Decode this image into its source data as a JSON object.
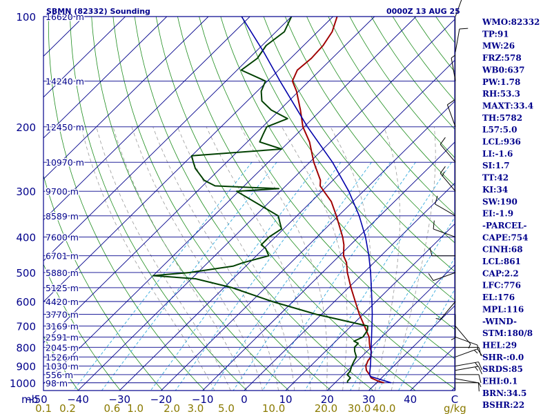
{
  "chart_data": {
    "type": "line",
    "chart_kind": "skew-t log-p sounding",
    "title": "SBMN (82332) Sounding",
    "datetime": "0000Z 13 AUG 25",
    "pressure_unit": "mb",
    "mixing_ratio_unit": "g/kg",
    "pressure_levels": [
      100,
      200,
      300,
      400,
      500,
      600,
      700,
      800,
      900,
      1000
    ],
    "pressure_range": [
      100,
      1050
    ],
    "isobar_labels": [
      "100",
      "200",
      "300",
      "400",
      "500",
      "600",
      "700",
      "800",
      "900",
      "1000"
    ],
    "height_labels": [
      {
        "p": 100,
        "text": "16620 m"
      },
      {
        "p": 150,
        "text": "14240 m"
      },
      {
        "p": 200,
        "text": "12450 m"
      },
      {
        "p": 250,
        "text": "10970 m"
      },
      {
        "p": 300,
        "text": "9700 m"
      },
      {
        "p": 350,
        "text": "8589 m"
      },
      {
        "p": 400,
        "text": "7600 m"
      },
      {
        "p": 450,
        "text": "6701 m"
      },
      {
        "p": 500,
        "text": "5880 m"
      },
      {
        "p": 550,
        "text": "5125 m"
      },
      {
        "p": 600,
        "text": "4420 m"
      },
      {
        "p": 650,
        "text": "3770 m"
      },
      {
        "p": 700,
        "text": "3169 m"
      },
      {
        "p": 750,
        "text": "2591 m"
      },
      {
        "p": 800,
        "text": "2045 m"
      },
      {
        "p": 850,
        "text": "1526 m"
      },
      {
        "p": 900,
        "text": "1030 m"
      },
      {
        "p": 950,
        "text": "556 m"
      },
      {
        "p": 1000,
        "text": "98 m"
      }
    ],
    "temperature_ticks": [
      -50,
      -40,
      -30,
      -20,
      -10,
      0,
      10,
      20,
      30,
      40
    ],
    "temperature_tick_labels": [
      "−50",
      "−40",
      "−30",
      "−20",
      "−10",
      "0",
      "10",
      "20",
      "30",
      "40"
    ],
    "temperature_unit_label": "C",
    "mixing_ratio_labels": [
      {
        "text": "0.1",
        "t": -48.3
      },
      {
        "text": "0.2",
        "t": -42.5
      },
      {
        "text": "0.6",
        "t": -31.8
      },
      {
        "text": "1.0",
        "t": -26.2
      },
      {
        "text": "2.0",
        "t": -17.4
      },
      {
        "text": "3.0",
        "t": -11.7
      },
      {
        "text": "5.0",
        "t": -4.3
      },
      {
        "text": "10.0",
        "t": 7.1
      },
      {
        "text": "20.0",
        "t": 19.7
      },
      {
        "text": "30.0",
        "t": 27.7
      },
      {
        "text": "40.0",
        "t": 33.7
      }
    ],
    "series": [
      {
        "role": "temperature",
        "color": "#a00000",
        "points": [
          [
            1000,
            31.8
          ],
          [
            990,
            30.0
          ],
          [
            970,
            27.5
          ],
          [
            950,
            26.3
          ],
          [
            925,
            24.5
          ],
          [
            900,
            23.3
          ],
          [
            870,
            22.5
          ],
          [
            850,
            22.3
          ],
          [
            820,
            21.0
          ],
          [
            800,
            19.7
          ],
          [
            780,
            18.6
          ],
          [
            750,
            17.0
          ],
          [
            700,
            13.2
          ],
          [
            650,
            9.1
          ],
          [
            600,
            5.0
          ],
          [
            550,
            0.6
          ],
          [
            500,
            -4.0
          ],
          [
            470,
            -6.6
          ],
          [
            450,
            -9.0
          ],
          [
            420,
            -11.6
          ],
          [
            400,
            -13.8
          ],
          [
            350,
            -20.5
          ],
          [
            320,
            -25.2
          ],
          [
            300,
            -29.5
          ],
          [
            290,
            -31.7
          ],
          [
            280,
            -33.0
          ],
          [
            250,
            -39.0
          ],
          [
            220,
            -45.0
          ],
          [
            200,
            -50.3
          ],
          [
            180,
            -55.0
          ],
          [
            160,
            -60.5
          ],
          [
            150,
            -64.0
          ],
          [
            140,
            -65.5
          ],
          [
            130,
            -65.0
          ],
          [
            120,
            -65.3
          ],
          [
            110,
            -66.5
          ],
          [
            100,
            -69.0
          ]
        ]
      },
      {
        "role": "dewpoint",
        "color": "#004000",
        "points": [
          [
            1000,
            23.0
          ],
          [
            990,
            22.6
          ],
          [
            970,
            22.5
          ],
          [
            950,
            20.9
          ],
          [
            930,
            20.8
          ],
          [
            900,
            19.9
          ],
          [
            870,
            19.2
          ],
          [
            850,
            18.8
          ],
          [
            820,
            17.0
          ],
          [
            800,
            16.0
          ],
          [
            780,
            15.9
          ],
          [
            770,
            14.4
          ],
          [
            750,
            15.5
          ],
          [
            720,
            15.0
          ],
          [
            700,
            14.0
          ],
          [
            650,
            -1.3
          ],
          [
            600,
            -15.0
          ],
          [
            550,
            -28.0
          ],
          [
            520,
            -39.0
          ],
          [
            510,
            -50.0
          ],
          [
            500,
            -42.0
          ],
          [
            480,
            -33.0
          ],
          [
            470,
            -31.5
          ],
          [
            450,
            -27.0
          ],
          [
            430,
            -29.5
          ],
          [
            420,
            -31.5
          ],
          [
            400,
            -31.5
          ],
          [
            380,
            -30.5
          ],
          [
            350,
            -34.5
          ],
          [
            300,
            -50.5
          ],
          [
            295,
            -41.0
          ],
          [
            290,
            -57.0
          ],
          [
            280,
            -61.0
          ],
          [
            260,
            -66.0
          ],
          [
            250,
            -68.0
          ],
          [
            240,
            -70.0
          ],
          [
            230,
            -50.0
          ],
          [
            220,
            -57.0
          ],
          [
            210,
            -58.0
          ],
          [
            200,
            -59.0
          ],
          [
            190,
            -56.0
          ],
          [
            180,
            -62.0
          ],
          [
            170,
            -66.5
          ],
          [
            160,
            -69.0
          ],
          [
            150,
            -70.5
          ],
          [
            140,
            -79.0
          ],
          [
            130,
            -78.0
          ],
          [
            120,
            -79.0
          ],
          [
            110,
            -78.0
          ],
          [
            100,
            -80.0
          ]
        ]
      },
      {
        "role": "parcel",
        "color": "#0000aa",
        "points": [
          [
            1000,
            33.5
          ],
          [
            961,
            27.0
          ],
          [
            950,
            26.3
          ],
          [
            900,
            24.4
          ],
          [
            850,
            22.3
          ],
          [
            800,
            20.0
          ],
          [
            750,
            17.6
          ],
          [
            700,
            15.0
          ],
          [
            650,
            12.2
          ],
          [
            600,
            9.0
          ],
          [
            550,
            5.5
          ],
          [
            500,
            1.6
          ],
          [
            450,
            -2.9
          ],
          [
            400,
            -8.3
          ],
          [
            350,
            -15.0
          ],
          [
            300,
            -23.5
          ],
          [
            250,
            -34.5
          ],
          [
            200,
            -49.2
          ],
          [
            150,
            -67.0
          ],
          [
            125,
            -78.0
          ],
          [
            100,
            -92.0
          ]
        ]
      }
    ],
    "winds": [
      {
        "p": 1000,
        "dir": 90,
        "spd": 5
      },
      {
        "p": 975,
        "dir": 100,
        "spd": 10
      },
      {
        "p": 950,
        "dir": 90,
        "spd": 10
      },
      {
        "p": 925,
        "dir": 80,
        "spd": 15
      },
      {
        "p": 900,
        "dir": 80,
        "spd": 15
      },
      {
        "p": 850,
        "dir": 70,
        "spd": 15
      },
      {
        "p": 800,
        "dir": 90,
        "spd": 10
      },
      {
        "p": 750,
        "dir": 110,
        "spd": 5
      },
      {
        "p": 700,
        "dir": 140,
        "spd": 5
      },
      {
        "p": 650,
        "dir": 180,
        "spd": 5
      },
      {
        "p": 600,
        "dir": 220,
        "spd": 5
      },
      {
        "p": 500,
        "dir": 250,
        "spd": 10
      },
      {
        "p": 450,
        "dir": 270,
        "spd": 10
      },
      {
        "p": 400,
        "dir": 290,
        "spd": 10
      },
      {
        "p": 350,
        "dir": 300,
        "spd": 10
      },
      {
        "p": 300,
        "dir": 320,
        "spd": 15
      },
      {
        "p": 250,
        "dir": 320,
        "spd": 10
      },
      {
        "p": 200,
        "dir": 340,
        "spd": 10
      },
      {
        "p": 150,
        "dir": 350,
        "spd": 5
      },
      {
        "p": 125,
        "dir": 10,
        "spd": 10
      },
      {
        "p": 100,
        "dir": 20,
        "spd": 15
      }
    ],
    "indices": [
      "WMO:82332",
      "TP:91",
      "MW:26",
      "FRZ:578",
      "WB0:637",
      "PW:1.78",
      "RH:53.3",
      "MAXT:33.4",
      "TH:5782",
      "L57:5.0",
      "LCL:936",
      "LI:-1.6",
      "SI:1.7",
      "TT:42",
      "KI:34",
      "SW:190",
      "EI:-1.9",
      "-PARCEL-",
      "CAPE:754",
      "CINH:68",
      "LCL:861",
      "CAP:2.2",
      "LFC:776",
      "EL:176",
      "MPL:116",
      "-WIND-",
      "STM:180/8",
      "HEL:29",
      "SHR-:0.0",
      "SRDS:85",
      "EHI:0.1",
      "BRN:34.5",
      "BSHR:22"
    ],
    "colors": {
      "isobars": "#00008b",
      "isotherms": "#00008b",
      "dry_adiabats": "#1c8c1c",
      "moist_adiabats": "#999999",
      "mixing_ratio": "#33aadd",
      "labels": "#00008b",
      "mixing_ratio_labels": "#8a7a00"
    }
  }
}
